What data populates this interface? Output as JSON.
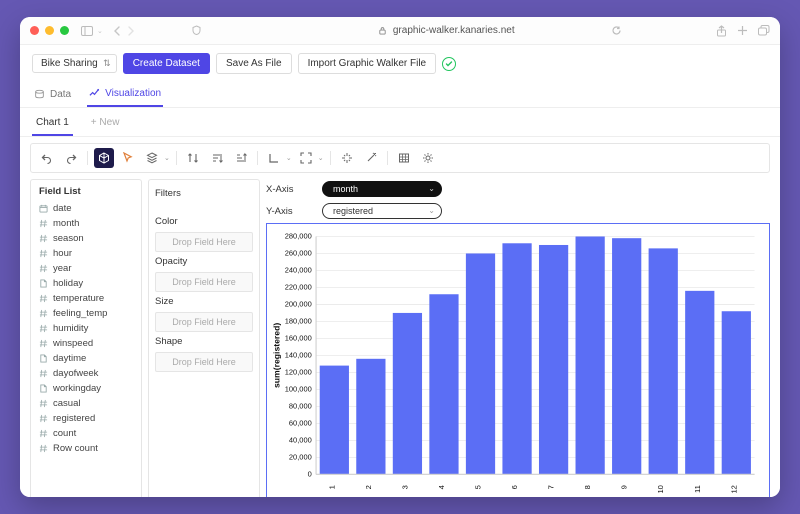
{
  "browser": {
    "url": "graphic-walker.kanaries.net"
  },
  "topbar": {
    "dataset_name": "Bike Sharing",
    "create_dataset": "Create Dataset",
    "save_as_file": "Save As File",
    "import_gw_file": "Import Graphic Walker File"
  },
  "tabs": {
    "data": "Data",
    "visualization": "Visualization"
  },
  "subtabs": {
    "chart1": "Chart 1",
    "new": "+ New"
  },
  "fieldlist": {
    "title": "Field List",
    "items": [
      {
        "icon": "cal",
        "label": "date"
      },
      {
        "icon": "hash",
        "label": "month"
      },
      {
        "icon": "hash",
        "label": "season"
      },
      {
        "icon": "hash",
        "label": "hour"
      },
      {
        "icon": "hash",
        "label": "year"
      },
      {
        "icon": "doc",
        "label": "holiday"
      },
      {
        "icon": "hash",
        "label": "temperature"
      },
      {
        "icon": "hash",
        "label": "feeling_temp"
      },
      {
        "icon": "hash",
        "label": "humidity"
      },
      {
        "icon": "hash",
        "label": "winspeed"
      },
      {
        "icon": "doc",
        "label": "daytime"
      },
      {
        "icon": "hash",
        "label": "dayofweek"
      },
      {
        "icon": "doc",
        "label": "workingday"
      },
      {
        "icon": "hash",
        "label": "casual"
      },
      {
        "icon": "hash",
        "label": "registered"
      },
      {
        "icon": "hash",
        "label": "count"
      },
      {
        "icon": "hash",
        "label": "Row count"
      }
    ]
  },
  "encodings": {
    "filters": "Filters",
    "color": "Color",
    "opacity": "Opacity",
    "size": "Size",
    "shape": "Shape",
    "drop_placeholder": "Drop Field Here"
  },
  "axes": {
    "x_label": "X-Axis",
    "y_label": "Y-Axis",
    "x_field": "month",
    "y_field": "registered"
  },
  "chart": {
    "type": "bar",
    "categories": [
      "1",
      "2",
      "3",
      "4",
      "5",
      "6",
      "7",
      "8",
      "9",
      "10",
      "11",
      "12"
    ],
    "values": [
      128000,
      136000,
      190000,
      212000,
      260000,
      272000,
      270000,
      280000,
      278000,
      266000,
      216000,
      192000
    ],
    "bar_color": "#5b6ef5",
    "grid_color": "#e8e8e8",
    "axis_color": "#cfcfcf",
    "text_color": "#111111",
    "background_color": "#ffffff",
    "x_title": "month",
    "y_title": "sum(registered)",
    "ylim": [
      0,
      280000
    ],
    "ytick_step": 20000,
    "bar_width": 0.8,
    "title_fontsize": 8,
    "tick_fontsize": 7
  }
}
